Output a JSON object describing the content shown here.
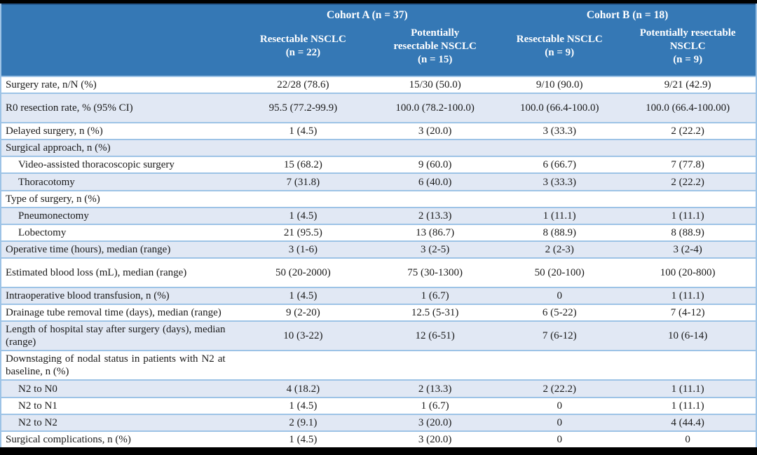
{
  "table": {
    "header": {
      "cohort_a": "Cohort A (n = 37)",
      "cohort_b": "Cohort B (n = 18)",
      "columns": [
        "Resectable NSCLC\n(n = 22)",
        "Potentially\nresectable NSCLC\n(n = 15)",
        "Resectable NSCLC\n(n = 9)",
        "Potentially resectable\nNSCLC\n(n = 9)"
      ]
    },
    "rows": [
      {
        "label": "Surgery rate, n/N (%)",
        "indent": false,
        "section": false,
        "tall": false,
        "values": [
          "22/28 (78.6)",
          "15/30 (50.0)",
          "9/10 (90.0)",
          "9/21 (42.9)"
        ]
      },
      {
        "label": "R0 resection rate, % (95% CI)",
        "indent": false,
        "section": false,
        "tall": true,
        "values": [
          "95.5 (77.2-99.9)",
          "100.0 (78.2-100.0)",
          "100.0 (66.4-100.0)",
          "100.0 (66.4-100.00)"
        ]
      },
      {
        "label": "Delayed surgery, n (%)",
        "indent": false,
        "section": false,
        "tall": false,
        "values": [
          "1 (4.5)",
          "3 (20.0)",
          "3 (33.3)",
          "2 (22.2)"
        ]
      },
      {
        "label": "Surgical approach, n (%)",
        "indent": false,
        "section": true,
        "tall": false,
        "values": [
          "",
          "",
          "",
          ""
        ]
      },
      {
        "label": "Video-assisted thoracoscopic surgery",
        "indent": true,
        "section": false,
        "tall": false,
        "values": [
          "15 (68.2)",
          "9 (60.0)",
          "6 (66.7)",
          "7 (77.8)"
        ]
      },
      {
        "label": "Thoracotomy",
        "indent": true,
        "section": false,
        "tall": false,
        "values": [
          "7 (31.8)",
          "6 (40.0)",
          "3 (33.3)",
          "2 (22.2)"
        ]
      },
      {
        "label": "Type of surgery, n (%)",
        "indent": false,
        "section": true,
        "tall": false,
        "values": [
          "",
          "",
          "",
          ""
        ]
      },
      {
        "label": "Pneumonectomy",
        "indent": true,
        "section": false,
        "tall": false,
        "values": [
          "1 (4.5)",
          "2 (13.3)",
          "1 (11.1)",
          "1 (11.1)"
        ]
      },
      {
        "label": "Lobectomy",
        "indent": true,
        "section": false,
        "tall": false,
        "values": [
          "21 (95.5)",
          "13 (86.7)",
          "8 (88.9)",
          "8 (88.9)"
        ]
      },
      {
        "label": "Operative time (hours), median (range)",
        "indent": false,
        "section": false,
        "tall": false,
        "values": [
          "3 (1-6)",
          "3 (2-5)",
          "2 (2-3)",
          "3 (2-4)"
        ]
      },
      {
        "label": "Estimated blood loss (mL), median (range)",
        "indent": false,
        "section": false,
        "tall": true,
        "values": [
          "50 (20-2000)",
          "75 (30-1300)",
          "50 (20-100)",
          "100 (20-800)"
        ]
      },
      {
        "label": "Intraoperative blood transfusion, n (%)",
        "indent": false,
        "section": false,
        "tall": false,
        "values": [
          "1 (4.5)",
          "1 (6.7)",
          "0",
          "1 (11.1)"
        ]
      },
      {
        "label": "Drainage tube removal time (days), median (range)",
        "indent": false,
        "section": false,
        "tall": false,
        "values": [
          "9 (2-20)",
          "12.5 (5-31)",
          "6 (5-22)",
          "7 (4-12)"
        ]
      },
      {
        "label": "Length of hospital stay after surgery (days), median (range)",
        "indent": false,
        "section": false,
        "tall": false,
        "values": [
          "10 (3-22)",
          "12 (6-51)",
          "7 (6-12)",
          "10 (6-14)"
        ]
      },
      {
        "label": "Downstaging of nodal status in patients with N2 at baseline, n (%)",
        "indent": false,
        "section": true,
        "tall": false,
        "values": [
          "",
          "",
          "",
          ""
        ]
      },
      {
        "label": "N2 to N0",
        "indent": true,
        "section": false,
        "tall": false,
        "values": [
          "4 (18.2)",
          "2 (13.3)",
          "2 (22.2)",
          "1 (11.1)"
        ]
      },
      {
        "label": "N2 to N1",
        "indent": true,
        "section": false,
        "tall": false,
        "values": [
          "1 (4.5)",
          "1 (6.7)",
          "0",
          "1 (11.1)"
        ]
      },
      {
        "label": "N2 to N2",
        "indent": true,
        "section": false,
        "tall": false,
        "values": [
          "2 (9.1)",
          "3 (20.0)",
          "0",
          "4 (44.4)"
        ]
      },
      {
        "label": "Surgical complications, n (%)",
        "indent": false,
        "section": false,
        "tall": false,
        "values": [
          "1 (4.5)",
          "3 (20.0)",
          "0",
          "0"
        ]
      }
    ]
  },
  "colors": {
    "header_bg": "#3578B5",
    "header_text": "#FFFFFF",
    "band_bg": "#E1E8F4",
    "row_line": "#9DC3E6",
    "frame_bar": "#000000",
    "body_text": "#1A1A1A"
  }
}
